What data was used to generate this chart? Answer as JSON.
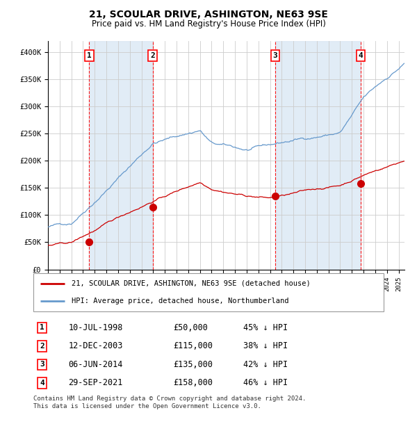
{
  "title": "21, SCOULAR DRIVE, ASHINGTON, NE63 9SE",
  "subtitle": "Price paid vs. HM Land Registry's House Price Index (HPI)",
  "hpi_color": "#6699cc",
  "price_color": "#cc0000",
  "marker_color": "#cc0000",
  "bg_color": "#dce9f5",
  "plot_bg": "#ffffff",
  "grid_color": "#cccccc",
  "sale_dates": [
    1998.53,
    2003.95,
    2014.43,
    2021.75
  ],
  "sale_prices": [
    50000,
    115000,
    135000,
    158000
  ],
  "sale_labels": [
    "1",
    "2",
    "3",
    "4"
  ],
  "sale_label_dates": [
    "10-JUL-1998",
    "12-DEC-2003",
    "06-JUN-2014",
    "29-SEP-2021"
  ],
  "sale_label_prices": [
    "£50,000",
    "£115,000",
    "£135,000",
    "£158,000"
  ],
  "sale_label_hpi": [
    "45% ↓ HPI",
    "38% ↓ HPI",
    "42% ↓ HPI",
    "46% ↓ HPI"
  ],
  "legend_line1": "21, SCOULAR DRIVE, ASHINGTON, NE63 9SE (detached house)",
  "legend_line2": "HPI: Average price, detached house, Northumberland",
  "footer": "Contains HM Land Registry data © Crown copyright and database right 2024.\nThis data is licensed under the Open Government Licence v3.0.",
  "ylim": [
    0,
    420000
  ],
  "yticks": [
    0,
    50000,
    100000,
    150000,
    200000,
    250000,
    300000,
    350000,
    400000
  ],
  "ytick_labels": [
    "£0",
    "£50K",
    "£100K",
    "£150K",
    "£200K",
    "£250K",
    "£300K",
    "£350K",
    "£400K"
  ],
  "xlim_start": 1995.0,
  "xlim_end": 2025.5
}
